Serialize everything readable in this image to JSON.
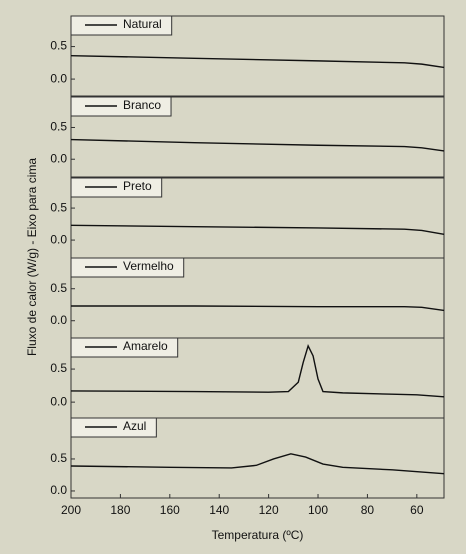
{
  "chart_data": [
    {
      "type": "line",
      "ylabel": "Fluxo de calor (W/g) - Eixo para cima",
      "xlim": [
        200,
        49
      ],
      "ylim": [
        -0.26,
        0.97
      ],
      "yticks": [
        {
          "value": 0,
          "label": "0.0"
        },
        0.5
      ],
      "series": [
        {
          "name": "Natural",
          "color": "#111111",
          "x": [
            200,
            150,
            100,
            65,
            58,
            49
          ],
          "values": [
            0.36,
            0.32,
            0.28,
            0.25,
            0.23,
            0.18
          ]
        }
      ]
    },
    {
      "type": "line",
      "xlim": [
        200,
        49
      ],
      "ylim": [
        -0.28,
        0.98
      ],
      "yticks": [
        {
          "value": 0,
          "label": "0.0"
        },
        0.5
      ],
      "series": [
        {
          "name": "Branco",
          "color": "#111111",
          "x": [
            200,
            150,
            100,
            65,
            58,
            49
          ],
          "values": [
            0.31,
            0.26,
            0.22,
            0.2,
            0.18,
            0.13
          ]
        }
      ]
    },
    {
      "type": "line",
      "xlim": [
        200,
        49
      ],
      "ylim": [
        -0.28,
        0.97
      ],
      "yticks": [
        {
          "value": 0,
          "label": "0.0"
        },
        0.5
      ],
      "series": [
        {
          "name": "Preto",
          "color": "#111111",
          "x": [
            200,
            150,
            100,
            65,
            58,
            49
          ],
          "values": [
            0.23,
            0.21,
            0.19,
            0.17,
            0.15,
            0.09
          ]
        }
      ]
    },
    {
      "type": "line",
      "xlim": [
        200,
        49
      ],
      "ylim": [
        -0.27,
        0.98
      ],
      "yticks": [
        {
          "value": 0,
          "label": "0.0"
        },
        0.5
      ],
      "series": [
        {
          "name": "Vermelho",
          "color": "#111111",
          "x": [
            200,
            150,
            100,
            65,
            58,
            49
          ],
          "values": [
            0.23,
            0.23,
            0.22,
            0.22,
            0.21,
            0.16
          ]
        }
      ]
    },
    {
      "type": "line",
      "xlim": [
        200,
        49
      ],
      "ylim": [
        -0.24,
        0.97
      ],
      "yticks": [
        {
          "value": 0,
          "label": "0.0"
        },
        0.5
      ],
      "series": [
        {
          "name": "Amarelo",
          "color": "#111111",
          "x": [
            200,
            150,
            120,
            112,
            108,
            106,
            104,
            102,
            100,
            98,
            90,
            70,
            60,
            49
          ],
          "values": [
            0.17,
            0.16,
            0.15,
            0.16,
            0.3,
            0.6,
            0.85,
            0.7,
            0.35,
            0.16,
            0.14,
            0.12,
            0.11,
            0.08
          ]
        }
      ]
    },
    {
      "type": "line",
      "xlabel": "Temperatura (ºC)",
      "xlim": [
        200,
        49
      ],
      "xticks": [
        200,
        180,
        160,
        140,
        120,
        100,
        80,
        60
      ],
      "ylim": [
        -0.11,
        1.14
      ],
      "yticks": [
        {
          "value": 0,
          "label": "0.0"
        },
        0.5
      ],
      "series": [
        {
          "name": "Azul",
          "color": "#111111",
          "x": [
            200,
            160,
            135,
            125,
            118,
            111,
            105,
            98,
            90,
            70,
            49
          ],
          "values": [
            0.39,
            0.37,
            0.36,
            0.4,
            0.5,
            0.58,
            0.53,
            0.42,
            0.37,
            0.33,
            0.27
          ]
        }
      ]
    }
  ]
}
